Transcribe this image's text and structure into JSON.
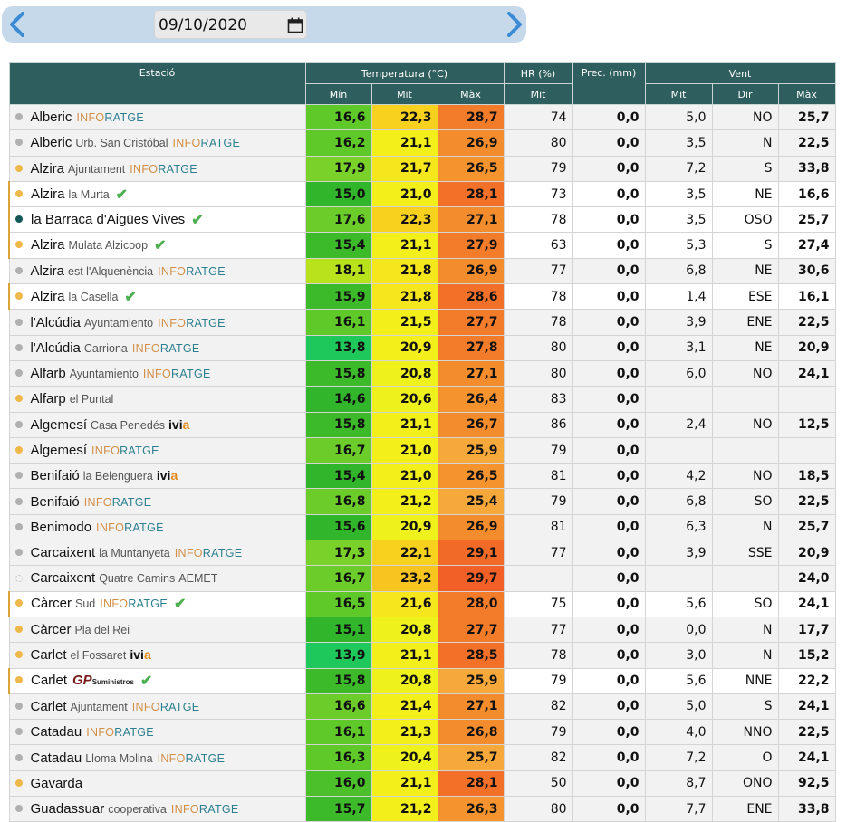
{
  "date_nav": {
    "date": "09/10/2020"
  },
  "header": {
    "station": "Estació",
    "temp": "Temperatura (°C)",
    "hr": "HR (%)",
    "prec": "Prec. (mm)",
    "wind": "Vent",
    "min": "Mín",
    "mit": "Mit",
    "max": "Màx",
    "hr_mit": "Mit",
    "wind_mit": "Mit",
    "wind_dir": "Dir",
    "wind_max": "Màx"
  },
  "colors": {
    "header_bg": "#2e5e5d",
    "date_bar_bg": "#c6d9eb",
    "dot_gray": "#b0b0b0",
    "dot_orange": "#efb84a",
    "dot_teal": "#13595a",
    "check": "#4caf50"
  },
  "rows": [
    {
      "name": "Alberic",
      "sub": "",
      "src": "inforatge",
      "dot": "gray",
      "check": false,
      "alt": false,
      "tmin": "16,6",
      "tmit": "22,3",
      "tmax": "28,7",
      "hr": "74",
      "prec": "0,0",
      "wmit": "5,0",
      "wdir": "NO",
      "wmax": "25,7",
      "cmin": "#5ec928",
      "cmit": "#f8d11e",
      "cmax": "#f37c2a"
    },
    {
      "name": "Alberic",
      "sub": "Urb. San Cristóbal",
      "src": "inforatge",
      "dot": "gray",
      "check": false,
      "alt": false,
      "tmin": "16,2",
      "tmit": "21,1",
      "tmax": "26,9",
      "hr": "80",
      "prec": "0,0",
      "wmit": "3,5",
      "wdir": "N",
      "wmax": "22,5",
      "cmin": "#5ec928",
      "cmit": "#f2ef1b",
      "cmax": "#f38c2c"
    },
    {
      "name": "Alzira",
      "sub": "Ajuntament",
      "src": "inforatge",
      "dot": "orange",
      "check": false,
      "alt": false,
      "tmin": "17,9",
      "tmit": "21,7",
      "tmax": "26,5",
      "hr": "79",
      "prec": "0,0",
      "wmit": "7,2",
      "wdir": "S",
      "wmax": "33,8",
      "cmin": "#7ad12a",
      "cmit": "#f6e61c",
      "cmax": "#f5942e"
    },
    {
      "name": "Alzira",
      "sub": "la Murta",
      "src": "",
      "dot": "orange",
      "check": true,
      "alt": true,
      "tmin": "15,0",
      "tmit": "21,0",
      "tmax": "28,1",
      "hr": "73",
      "prec": "0,0",
      "wmit": "3,5",
      "wdir": "NE",
      "wmax": "16,6",
      "cmin": "#31b52a",
      "cmit": "#f2ef1b",
      "cmax": "#f37028"
    },
    {
      "name": "la Barraca d'Aigües Vives",
      "sub": "",
      "src": "",
      "dot": "teal",
      "check": true,
      "alt": true,
      "tmin": "17,6",
      "tmit": "22,3",
      "tmax": "27,1",
      "hr": "78",
      "prec": "0,0",
      "wmit": "3,5",
      "wdir": "OSO",
      "wmax": "25,7",
      "cmin": "#6ccd2a",
      "cmit": "#f8d11e",
      "cmax": "#f38c2c"
    },
    {
      "name": "Alzira",
      "sub": "Mulata Alzicoop",
      "src": "",
      "dot": "orange",
      "check": true,
      "alt": true,
      "tmin": "15,4",
      "tmit": "21,1",
      "tmax": "27,9",
      "hr": "63",
      "prec": "0,0",
      "wmit": "5,3",
      "wdir": "S",
      "wmax": "27,4",
      "cmin": "#3cba2a",
      "cmit": "#f2ef1b",
      "cmax": "#f37c2a"
    },
    {
      "name": "Alzira",
      "sub": "est l'Alquenència",
      "src": "inforatge",
      "dot": "gray",
      "check": false,
      "alt": false,
      "tmin": "18,1",
      "tmit": "21,8",
      "tmax": "26,9",
      "hr": "77",
      "prec": "0,0",
      "wmit": "6,8",
      "wdir": "NE",
      "wmax": "30,6",
      "cmin": "#b8e21c",
      "cmit": "#f6e61c",
      "cmax": "#f38c2c"
    },
    {
      "name": "Alzira",
      "sub": "la Casella",
      "src": "",
      "dot": "orange",
      "check": true,
      "alt": true,
      "tmin": "15,9",
      "tmit": "21,8",
      "tmax": "28,6",
      "hr": "78",
      "prec": "0,0",
      "wmit": "1,4",
      "wdir": "ESE",
      "wmax": "16,1",
      "cmin": "#3cba2a",
      "cmit": "#f6e61c",
      "cmax": "#f37028"
    },
    {
      "name": "l'Alcúdia",
      "sub": "Ayuntamiento",
      "src": "inforatge",
      "dot": "gray",
      "check": false,
      "alt": false,
      "tmin": "16,1",
      "tmit": "21,5",
      "tmax": "27,7",
      "hr": "78",
      "prec": "0,0",
      "wmit": "3,9",
      "wdir": "ENE",
      "wmax": "22,5",
      "cmin": "#5ec928",
      "cmit": "#f2ef1b",
      "cmax": "#f37c2a"
    },
    {
      "name": "l'Alcúdia",
      "sub": "Carriona",
      "src": "inforatge",
      "dot": "gray",
      "check": false,
      "alt": false,
      "tmin": "13,8",
      "tmit": "20,9",
      "tmax": "27,8",
      "hr": "80",
      "prec": "0,0",
      "wmit": "3,1",
      "wdir": "NE",
      "wmax": "20,9",
      "cmin": "#1ec85a",
      "cmit": "#f2ef1b",
      "cmax": "#f37c2a"
    },
    {
      "name": "Alfarb",
      "sub": "Ayuntamiento",
      "src": "inforatge",
      "dot": "gray",
      "check": false,
      "alt": false,
      "tmin": "15,8",
      "tmit": "20,8",
      "tmax": "27,1",
      "hr": "80",
      "prec": "0,0",
      "wmit": "6,0",
      "wdir": "NO",
      "wmax": "24,1",
      "cmin": "#3cba2a",
      "cmit": "#eef11b",
      "cmax": "#f38c2c"
    },
    {
      "name": "Alfarp",
      "sub": "el Puntal",
      "src": "",
      "dot": "orange",
      "check": false,
      "alt": false,
      "tmin": "14,6",
      "tmit": "20,6",
      "tmax": "26,4",
      "hr": "83",
      "prec": "0,0",
      "wmit": "",
      "wdir": "",
      "wmax": "",
      "cmin": "#31b52a",
      "cmit": "#eef11b",
      "cmax": "#f5942e"
    },
    {
      "name": "Algemesí",
      "sub": "Casa Penedés",
      "src": "ivia",
      "dot": "gray",
      "check": false,
      "alt": false,
      "tmin": "15,8",
      "tmit": "21,1",
      "tmax": "26,7",
      "hr": "86",
      "prec": "0,0",
      "wmit": "2,4",
      "wdir": "NO",
      "wmax": "12,5",
      "cmin": "#3cba2a",
      "cmit": "#f2ef1b",
      "cmax": "#f38c2c"
    },
    {
      "name": "Algemesí",
      "sub": "",
      "src": "inforatge",
      "dot": "orange",
      "check": false,
      "alt": false,
      "tmin": "16,7",
      "tmit": "21,0",
      "tmax": "25,9",
      "hr": "79",
      "prec": "0,0",
      "wmit": "",
      "wdir": "",
      "wmax": "",
      "cmin": "#6ccd2a",
      "cmit": "#f2ef1b",
      "cmax": "#f6a83a"
    },
    {
      "name": "Benifaió",
      "sub": "la Belenguera",
      "src": "ivia",
      "dot": "gray",
      "check": false,
      "alt": false,
      "tmin": "15,4",
      "tmit": "21,0",
      "tmax": "26,5",
      "hr": "81",
      "prec": "0,0",
      "wmit": "4,2",
      "wdir": "NO",
      "wmax": "18,5",
      "cmin": "#31b52a",
      "cmit": "#f2ef1b",
      "cmax": "#f5942e"
    },
    {
      "name": "Benifaió",
      "sub": "",
      "src": "inforatge",
      "dot": "gray",
      "check": false,
      "alt": false,
      "tmin": "16,8",
      "tmit": "21,2",
      "tmax": "25,4",
      "hr": "79",
      "prec": "0,0",
      "wmit": "6,8",
      "wdir": "SO",
      "wmax": "22,5",
      "cmin": "#6ccd2a",
      "cmit": "#f2ef1b",
      "cmax": "#f6a83a"
    },
    {
      "name": "Benimodo",
      "sub": "",
      "src": "inforatge",
      "dot": "gray",
      "check": false,
      "alt": false,
      "tmin": "15,6",
      "tmit": "20,9",
      "tmax": "26,9",
      "hr": "81",
      "prec": "0,0",
      "wmit": "6,3",
      "wdir": "N",
      "wmax": "25,7",
      "cmin": "#31b52a",
      "cmit": "#eef11b",
      "cmax": "#f38c2c"
    },
    {
      "name": "Carcaixent",
      "sub": "la Muntanyeta",
      "src": "inforatge",
      "dot": "gray",
      "check": false,
      "alt": false,
      "tmin": "17,3",
      "tmit": "22,1",
      "tmax": "29,1",
      "hr": "77",
      "prec": "0,0",
      "wmit": "3,9",
      "wdir": "SSE",
      "wmax": "20,9",
      "cmin": "#7ad12a",
      "cmit": "#f8d11e",
      "cmax": "#f26a28"
    },
    {
      "name": "Carcaixent",
      "sub": "Quatre Camins",
      "src": "aemet",
      "dot": "empty",
      "check": false,
      "alt": false,
      "tmin": "16,7",
      "tmit": "23,2",
      "tmax": "29,7",
      "hr": "",
      "prec": "0,0",
      "wmit": "",
      "wdir": "",
      "wmax": "24,0",
      "cmin": "#6ccd2a",
      "cmit": "#f8c41f",
      "cmax": "#f26028"
    },
    {
      "name": "Càrcer",
      "sub": "Sud",
      "src": "inforatge",
      "dot": "orange",
      "check": true,
      "alt": true,
      "tmin": "16,5",
      "tmit": "21,6",
      "tmax": "28,0",
      "hr": "75",
      "prec": "0,0",
      "wmit": "5,6",
      "wdir": "SO",
      "wmax": "24,1",
      "cmin": "#5ec928",
      "cmit": "#f6e61c",
      "cmax": "#f37c2a"
    },
    {
      "name": "Càrcer",
      "sub": "Pla del Rei",
      "src": "",
      "dot": "orange",
      "check": false,
      "alt": false,
      "tmin": "15,1",
      "tmit": "20,8",
      "tmax": "27,7",
      "hr": "77",
      "prec": "0,0",
      "wmit": "0,0",
      "wdir": "N",
      "wmax": "17,7",
      "cmin": "#31b52a",
      "cmit": "#eef11b",
      "cmax": "#f37c2a"
    },
    {
      "name": "Carlet",
      "sub": "el Fossaret",
      "src": "ivia",
      "dot": "orange",
      "check": false,
      "alt": false,
      "tmin": "13,9",
      "tmit": "21,1",
      "tmax": "28,5",
      "hr": "78",
      "prec": "0,0",
      "wmit": "3,0",
      "wdir": "N",
      "wmax": "15,2",
      "cmin": "#1ec85a",
      "cmit": "#f2ef1b",
      "cmax": "#f37028"
    },
    {
      "name": "Carlet",
      "sub": "",
      "src": "gp",
      "dot": "orange",
      "check": true,
      "alt": true,
      "tmin": "15,8",
      "tmit": "20,8",
      "tmax": "25,9",
      "hr": "79",
      "prec": "0,0",
      "wmit": "5,6",
      "wdir": "NNE",
      "wmax": "22,2",
      "cmin": "#3cba2a",
      "cmit": "#eef11b",
      "cmax": "#f6a83a"
    },
    {
      "name": "Carlet",
      "sub": "Ajuntament",
      "src": "inforatge",
      "dot": "gray",
      "check": false,
      "alt": false,
      "tmin": "16,6",
      "tmit": "21,4",
      "tmax": "27,1",
      "hr": "82",
      "prec": "0,0",
      "wmit": "5,0",
      "wdir": "S",
      "wmax": "24,1",
      "cmin": "#6ccd2a",
      "cmit": "#f2ef1b",
      "cmax": "#f38c2c"
    },
    {
      "name": "Catadau",
      "sub": "",
      "src": "inforatge",
      "dot": "gray",
      "check": false,
      "alt": false,
      "tmin": "16,1",
      "tmit": "21,3",
      "tmax": "26,8",
      "hr": "79",
      "prec": "0,0",
      "wmit": "4,0",
      "wdir": "NNO",
      "wmax": "22,5",
      "cmin": "#5ec928",
      "cmit": "#f2ef1b",
      "cmax": "#f38c2c"
    },
    {
      "name": "Catadau",
      "sub": "Lloma Molina",
      "src": "inforatge",
      "dot": "gray",
      "check": false,
      "alt": false,
      "tmin": "16,3",
      "tmit": "20,4",
      "tmax": "25,7",
      "hr": "82",
      "prec": "0,0",
      "wmit": "7,2",
      "wdir": "O",
      "wmax": "24,1",
      "cmin": "#5ec928",
      "cmit": "#eef11b",
      "cmax": "#f6a83a"
    },
    {
      "name": "Gavarda",
      "sub": "",
      "src": "",
      "dot": "orange",
      "check": false,
      "alt": false,
      "tmin": "16,0",
      "tmit": "21,1",
      "tmax": "28,1",
      "hr": "50",
      "prec": "0,0",
      "wmit": "8,7",
      "wdir": "ONO",
      "wmax": "92,5",
      "cmin": "#4cc02a",
      "cmit": "#f2ef1b",
      "cmax": "#f37028"
    },
    {
      "name": "Guadassuar",
      "sub": "cooperativa",
      "src": "inforatge",
      "dot": "gray",
      "check": false,
      "alt": false,
      "tmin": "15,7",
      "tmit": "21,2",
      "tmax": "26,3",
      "hr": "80",
      "prec": "0,0",
      "wmit": "7,7",
      "wdir": "ENE",
      "wmax": "33,8",
      "cmin": "#3cba2a",
      "cmit": "#f2ef1b",
      "cmax": "#f5942e"
    }
  ],
  "brands": {
    "inforatge_a": "INFO",
    "inforatge_b": "RATGE",
    "ivia_a": "ivi",
    "ivia_b": "a",
    "gp_a": "GP",
    "gp_b": "Suministros",
    "aemet": "AEMET"
  }
}
